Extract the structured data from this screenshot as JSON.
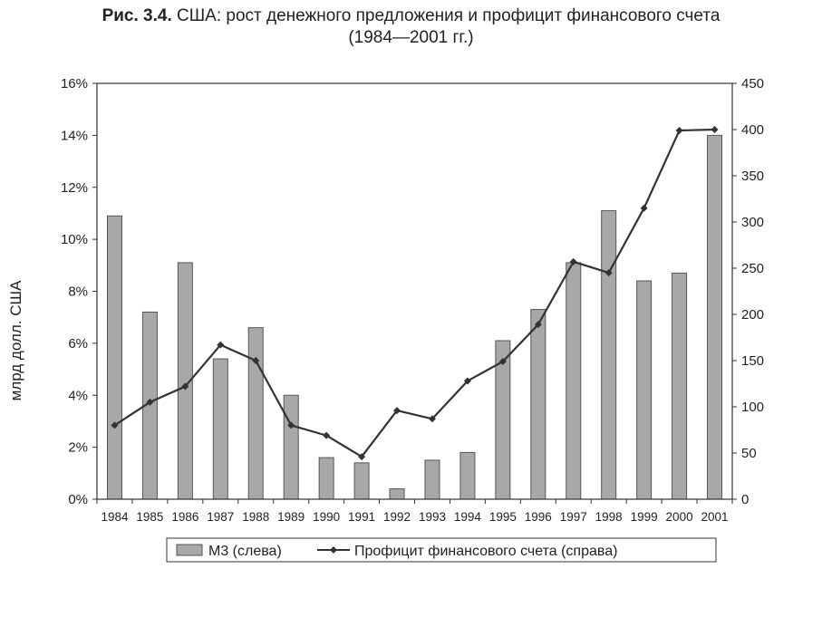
{
  "figure": {
    "prefix": "Рис. 3.4.",
    "title_line1": "США: рост денежного предложения и профицит финансового счета",
    "title_line2": "(1984—2001 гг.)"
  },
  "chart_data": {
    "type": "bar",
    "categories": [
      "1984",
      "1985",
      "1986",
      "1987",
      "1988",
      "1989",
      "1990",
      "1991",
      "1992",
      "1993",
      "1994",
      "1995",
      "1996",
      "1997",
      "1998",
      "1999",
      "2000",
      "2001"
    ],
    "series": [
      {
        "name": "M3 (слева)",
        "type": "bar",
        "axis": "left",
        "values": [
          10.9,
          7.2,
          9.1,
          5.4,
          6.6,
          4.0,
          1.6,
          1.4,
          0.4,
          1.5,
          1.8,
          6.1,
          7.3,
          9.1,
          11.1,
          8.4,
          8.7,
          14.0
        ]
      },
      {
        "name": "Профицит финансового счета (справа)",
        "type": "line",
        "axis": "right",
        "values": [
          80,
          105,
          122,
          167,
          150,
          80,
          69,
          46,
          96,
          87,
          128,
          149,
          189,
          257,
          245,
          315,
          399,
          400
        ]
      }
    ],
    "left_axis": {
      "min": 0,
      "max": 16,
      "ticks": [
        "0%",
        "2%",
        "4%",
        "6%",
        "8%",
        "10%",
        "12%",
        "14%",
        "16%"
      ]
    },
    "right_axis": {
      "min": 0,
      "max": 450,
      "ticks": [
        "0",
        "50",
        "100",
        "150",
        "200",
        "250",
        "300",
        "350",
        "400",
        "450"
      ]
    },
    "ylabel": "млрд долл. США",
    "xlabel": "",
    "legend_position": "bottom",
    "grid": false,
    "colors": {
      "bar_fill": "#a8a8a8",
      "bar_stroke": "#555555",
      "line": "#333333"
    }
  }
}
